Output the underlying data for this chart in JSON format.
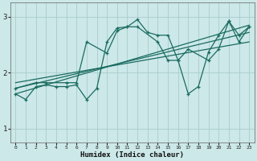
{
  "xlabel": "Humidex (Indice chaleur)",
  "xlim": [
    -0.5,
    23.5
  ],
  "ylim": [
    0.75,
    3.25
  ],
  "yticks": [
    1,
    2,
    3
  ],
  "xticks": [
    0,
    1,
    2,
    3,
    4,
    5,
    6,
    7,
    8,
    9,
    10,
    11,
    12,
    13,
    14,
    15,
    16,
    17,
    18,
    19,
    20,
    21,
    22,
    23
  ],
  "bg_color": "#cce8e8",
  "line_color": "#1a6b60",
  "grid_color": "#aacccc",
  "series1_x": [
    0,
    1,
    2,
    3,
    4,
    5,
    6,
    7,
    8,
    9,
    10,
    11,
    12,
    13,
    14,
    15,
    16,
    17,
    18,
    19,
    20,
    21,
    22,
    23
  ],
  "series1_y": [
    1.62,
    1.52,
    1.75,
    1.78,
    1.75,
    1.75,
    1.78,
    1.52,
    1.72,
    2.55,
    2.8,
    2.82,
    2.95,
    2.72,
    2.67,
    2.67,
    2.22,
    1.62,
    1.75,
    2.37,
    2.67,
    2.92,
    2.67,
    2.82
  ],
  "series2_x": [
    0,
    2,
    3,
    5,
    6,
    7,
    9,
    10,
    11,
    12,
    14,
    15,
    16,
    17,
    19,
    20,
    21,
    22,
    23
  ],
  "series2_y": [
    1.72,
    1.82,
    1.82,
    1.82,
    1.82,
    2.55,
    2.35,
    2.75,
    2.82,
    2.82,
    2.55,
    2.22,
    2.22,
    2.42,
    2.22,
    2.42,
    2.92,
    2.55,
    2.82
  ],
  "trend1_x": [
    0,
    23
  ],
  "trend1_y": [
    1.72,
    2.72
  ],
  "trend2_x": [
    0,
    23
  ],
  "trend2_y": [
    1.82,
    2.55
  ],
  "trend3_x": [
    0,
    23
  ],
  "trend3_y": [
    1.62,
    2.85
  ]
}
